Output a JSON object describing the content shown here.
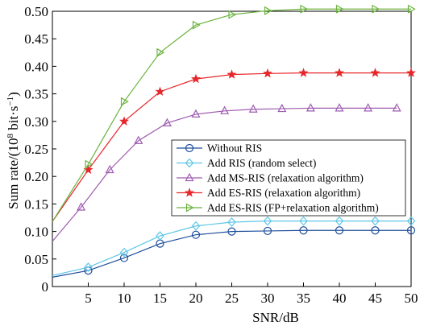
{
  "chart_data": {
    "type": "line",
    "xlabel": "SNR/dB",
    "ylabel": {
      "pre": "Sum rate/(10",
      "sup1": "8",
      "mid": " bit·s",
      "sup2": "−1",
      "post": ")"
    },
    "xlim": [
      0,
      50
    ],
    "ylim": [
      0,
      0.5
    ],
    "xticks": [
      5,
      10,
      15,
      20,
      25,
      30,
      35,
      40,
      45,
      50
    ],
    "yticks": [
      0,
      0.05,
      0.1,
      0.15,
      0.2,
      0.25,
      0.3,
      0.35,
      0.4,
      0.45,
      0.5
    ],
    "ytick_labels": [
      "0",
      "0.05",
      "0.10",
      "0.15",
      "0.20",
      "0.25",
      "0.30",
      "0.35",
      "0.40",
      "0.45",
      "0.50"
    ],
    "grid": false,
    "legend_position": "center-right",
    "series": [
      {
        "name": "Without RIS",
        "color": "#1f4e9c",
        "marker": "circle",
        "x": [
          0,
          5,
          10,
          15,
          20,
          25,
          30,
          35,
          40,
          45,
          50
        ],
        "y": [
          0.017,
          0.029,
          0.052,
          0.078,
          0.094,
          0.1,
          0.101,
          0.102,
          0.102,
          0.102,
          0.102
        ]
      },
      {
        "name": "Add RIS (random select)",
        "color": "#5fc6e6",
        "marker": "diamond",
        "x": [
          0,
          5,
          10,
          15,
          20,
          25,
          30,
          35,
          40,
          45,
          50
        ],
        "y": [
          0.02,
          0.035,
          0.062,
          0.092,
          0.11,
          0.117,
          0.119,
          0.119,
          0.119,
          0.119,
          0.119
        ]
      },
      {
        "name": "Add MS-RIS (relaxation algorithm)",
        "color": "#9e5bb0",
        "marker": "triangle-up",
        "x": [
          0,
          4,
          8,
          12,
          16,
          20,
          24,
          28,
          32,
          36,
          40,
          44,
          48
        ],
        "y": [
          0.082,
          0.144,
          0.212,
          0.265,
          0.297,
          0.313,
          0.319,
          0.322,
          0.323,
          0.324,
          0.324,
          0.324,
          0.324
        ]
      },
      {
        "name": "Add ES-RIS (relaxation algorithm)",
        "color": "#e8262a",
        "marker": "star",
        "x": [
          0,
          5,
          10,
          15,
          20,
          25,
          30,
          35,
          40,
          45,
          50
        ],
        "y": [
          0.118,
          0.212,
          0.3,
          0.354,
          0.377,
          0.385,
          0.387,
          0.388,
          0.388,
          0.388,
          0.388
        ]
      },
      {
        "name": "Add ES-RIS (FP+relaxation algorithm)",
        "color": "#6cb33f",
        "marker": "triangle-right",
        "x": [
          0,
          5,
          10,
          15,
          20,
          25,
          30,
          35,
          40,
          45,
          50
        ],
        "y": [
          0.118,
          0.222,
          0.336,
          0.425,
          0.475,
          0.494,
          0.501,
          0.504,
          0.504,
          0.504,
          0.504
        ]
      }
    ]
  }
}
